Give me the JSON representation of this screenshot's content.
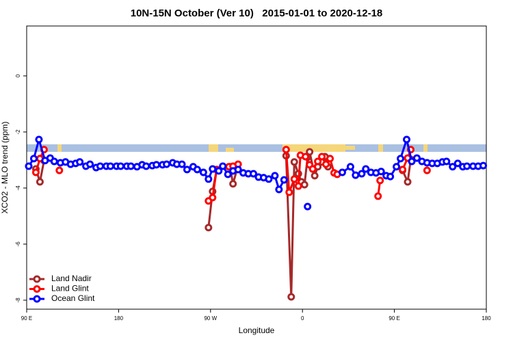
{
  "chart_data": {
    "type": "line",
    "title": "10N-15N October (Ver 10)   2015-01-01 to 2020-12-18",
    "xlabel": "Longitude",
    "ylabel": "XCO2 - MLO trend (ppm)",
    "xlim": [
      90,
      540
    ],
    "xticks": [
      {
        "value": 90,
        "label": "90 E"
      },
      {
        "value": 180,
        "label": "180"
      },
      {
        "value": 270,
        "label": "90 W"
      },
      {
        "value": 360,
        "label": "0"
      },
      {
        "value": 450,
        "label": "90 E"
      },
      {
        "value": 540,
        "label": "180"
      }
    ],
    "ylim": [
      -8.32,
      1.78
    ],
    "yticks": [
      0,
      -2,
      -4,
      -6,
      -8
    ],
    "legend": "bottom-left",
    "series": [
      {
        "name": "Land Nadir",
        "color": "#a52a2a",
        "x": [
          99,
          103,
          107,
          null,
          268,
          272,
          276,
          null,
          289,
          292,
          296,
          null,
          344,
          349,
          352,
          356,
          359,
          362,
          365,
          367,
          372,
          375,
          379,
          382,
          385,
          null,
          458,
          463,
          466
        ],
        "values": [
          -3.32,
          -3.78,
          -3.02,
          null,
          -5.41,
          -4.12,
          -3.34,
          null,
          -3.24,
          -3.85,
          -3.32,
          null,
          -2.85,
          -7.88,
          -3.07,
          -3.49,
          -3.78,
          -3.88,
          -2.9,
          -2.71,
          -3.56,
          -3.24,
          -3.07,
          -2.88,
          -3.24,
          null,
          -3.37,
          -3.78,
          -2.98
        ]
      },
      {
        "name": "Land Glint",
        "color": "#ff0000",
        "x": [
          99,
          103,
          107,
          null,
          122,
          null,
          268,
          272,
          276,
          null,
          288,
          292,
          297,
          null,
          344,
          347,
          352,
          356,
          358,
          363,
          367,
          370,
          375,
          379,
          383,
          387,
          391,
          394,
          null,
          434,
          436,
          null,
          458,
          463,
          466,
          null,
          482
        ],
        "values": [
          -3.44,
          -2.95,
          -2.63,
          null,
          -3.37,
          null,
          -4.46,
          -4.34,
          -3.34,
          null,
          -3.24,
          -3.22,
          -3.15,
          null,
          -2.63,
          -4.15,
          -3.68,
          -3.93,
          -2.83,
          -2.88,
          -3.17,
          -3.32,
          -3.05,
          -2.88,
          -3.15,
          -2.95,
          -3.46,
          -3.51,
          null,
          -4.29,
          -3.73,
          null,
          -3.34,
          -2.93,
          -2.63,
          null,
          -3.37
        ]
      },
      {
        "name": "Ocean Glint",
        "color": "#0000ff",
        "x": [
          92,
          97,
          102,
          108,
          113,
          117,
          123,
          128,
          133,
          138,
          142,
          148,
          152,
          158,
          162,
          168,
          172,
          178,
          182,
          188,
          192,
          198,
          203,
          207,
          213,
          217,
          223,
          227,
          233,
          237,
          242,
          247,
          253,
          257,
          263,
          268,
          272,
          278,
          282,
          287,
          292,
          297,
          302,
          307,
          312,
          317,
          322,
          327,
          333,
          337,
          342,
          null,
          365,
          null,
          399,
          407,
          412,
          418,
          422,
          427,
          432,
          437,
          442,
          446,
          452,
          456,
          462,
          467,
          472,
          477,
          482,
          487,
          492,
          497,
          501,
          507,
          512,
          517,
          521,
          527,
          532,
          537
        ],
        "values": [
          -3.22,
          -2.95,
          -2.27,
          -3.02,
          -2.93,
          -3.05,
          -3.1,
          -3.07,
          -3.15,
          -3.12,
          -3.07,
          -3.22,
          -3.15,
          -3.27,
          -3.22,
          -3.22,
          -3.22,
          -3.22,
          -3.22,
          -3.22,
          -3.22,
          -3.24,
          -3.17,
          -3.22,
          -3.2,
          -3.17,
          -3.17,
          -3.15,
          -3.1,
          -3.15,
          -3.15,
          -3.34,
          -3.24,
          -3.34,
          -3.44,
          -3.68,
          -3.32,
          -3.39,
          -3.22,
          -3.51,
          -3.39,
          -3.34,
          -3.46,
          -3.49,
          -3.49,
          -3.61,
          -3.63,
          -3.68,
          -3.56,
          -4.05,
          -3.71,
          null,
          -4.66,
          null,
          -3.44,
          -3.24,
          -3.54,
          -3.49,
          -3.32,
          -3.44,
          -3.46,
          -3.41,
          -3.56,
          -3.59,
          -3.24,
          -2.95,
          -2.27,
          -3.05,
          -2.93,
          -3.05,
          -3.1,
          -3.12,
          -3.12,
          -3.07,
          -3.05,
          -3.24,
          -3.12,
          -3.24,
          -3.22,
          -3.22,
          -3.22,
          -3.2
        ]
      }
    ]
  }
}
